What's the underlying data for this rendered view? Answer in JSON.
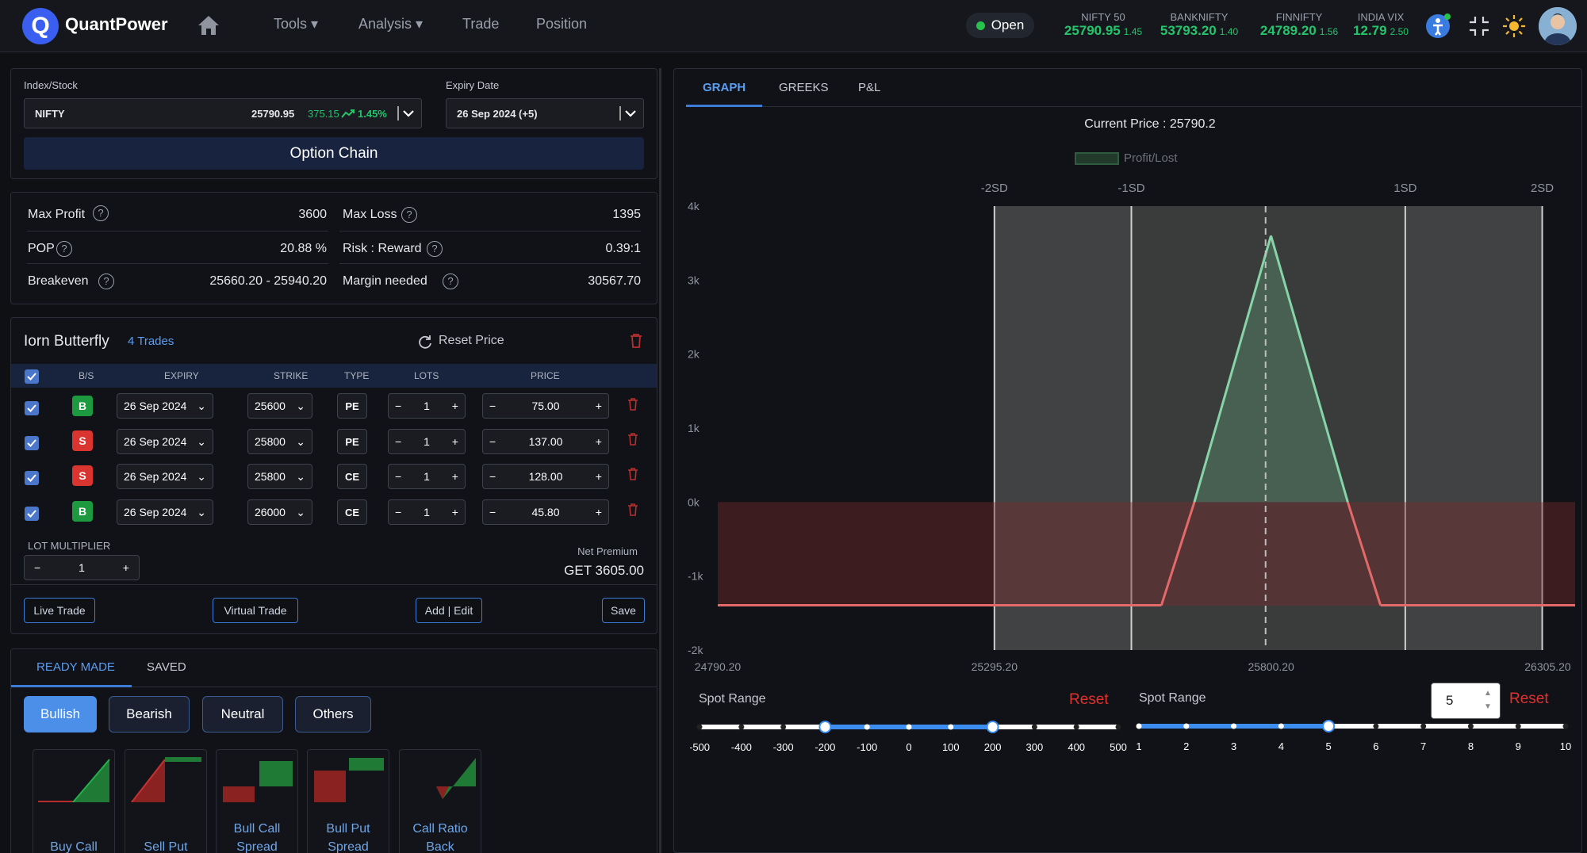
{
  "app": {
    "name": "QuantPower",
    "logo_letter": "Q"
  },
  "nav": {
    "home_icon": "home-icon",
    "items": [
      {
        "label": "Tools ▾"
      },
      {
        "label": "Analysis ▾"
      },
      {
        "label": "Trade"
      },
      {
        "label": "Position"
      }
    ]
  },
  "market_status": "Open",
  "indices": [
    {
      "name": "NIFTY 50",
      "value": "25790.95",
      "change": "1.45"
    },
    {
      "name": "BANKNIFTY",
      "value": "53793.20",
      "change": "1.40"
    },
    {
      "name": "FINNIFTY",
      "value": "24789.20",
      "change": "1.56"
    },
    {
      "name": "INDIA VIX",
      "value": "12.79",
      "change": "2.50"
    }
  ],
  "header_icons": [
    "accessibility-icon",
    "compress-icon",
    "sun-icon",
    "user-avatar"
  ],
  "selector": {
    "index_label": "Index/Stock",
    "index_symbol": "NIFTY",
    "index_price": "25790.95",
    "index_change": "375.15",
    "index_change_pct": "1.45%",
    "expiry_label": "Expiry Date",
    "expiry_value": "26 Sep 2024 (+5)",
    "option_chain_label": "Option Chain"
  },
  "stats": {
    "max_profit_label": "Max Profit",
    "max_profit": "3600",
    "max_loss_label": "Max Loss",
    "max_loss": "1395",
    "pop_label": "POP",
    "pop": "20.88 %",
    "rr_label": "Risk : Reward",
    "rr": "0.39:1",
    "breakeven_label": "Breakeven",
    "breakeven": "25660.20 - 25940.20",
    "margin_label": "Margin needed",
    "margin": "30567.70"
  },
  "strategy": {
    "name": "Iorn Butterfly",
    "trade_count": "4 Trades",
    "reset_price_label": "Reset Price",
    "columns": [
      "B/S",
      "EXPIRY",
      "STRIKE",
      "TYPE",
      "LOTS",
      "PRICE"
    ],
    "rows": [
      {
        "side": "B",
        "expiry": "26 Sep 2024",
        "strike": "25600",
        "type": "PE",
        "lots": "1",
        "price": "75.00"
      },
      {
        "side": "S",
        "expiry": "26 Sep 2024",
        "strike": "25800",
        "type": "PE",
        "lots": "1",
        "price": "137.00"
      },
      {
        "side": "S",
        "expiry": "26 Sep 2024",
        "strike": "25800",
        "type": "CE",
        "lots": "1",
        "price": "128.00"
      },
      {
        "side": "B",
        "expiry": "26 Sep 2024",
        "strike": "26000",
        "type": "CE",
        "lots": "1",
        "price": "45.80"
      }
    ],
    "lot_multiplier_label": "LOT MULTIPLIER",
    "lot_multiplier": "1",
    "net_premium_label": "Net Premium",
    "net_premium": "GET 3605.00",
    "buttons": {
      "live": "Live Trade",
      "virtual": "Virtual Trade",
      "add_edit": "Add | Edit",
      "save": "Save"
    }
  },
  "readymade": {
    "tabs": [
      "READY MADE",
      "SAVED"
    ],
    "categories": [
      "Bullish",
      "Bearish",
      "Neutral",
      "Others"
    ],
    "cards": [
      {
        "l1": "Buy Call",
        "l2": ""
      },
      {
        "l1": "Sell Put",
        "l2": ""
      },
      {
        "l1": "Bull Call",
        "l2": "Spread"
      },
      {
        "l1": "Bull Put",
        "l2": "Spread"
      },
      {
        "l1": "Call Ratio",
        "l2": "Back"
      }
    ]
  },
  "right_tabs": [
    "GRAPH",
    "GREEKS",
    "P&L"
  ],
  "chart_data": {
    "type": "area",
    "title": "Current Price : 25790.2",
    "legend": [
      "Profit/Lost"
    ],
    "legend_position": "top-center",
    "sd_labels": [
      "-2SD",
      "-1SD",
      "1SD",
      "2SD"
    ],
    "sd_x": [
      25295.2,
      25545.2,
      26045.2,
      26295.2
    ],
    "current_price": 25790.2,
    "x_ticks": [
      "24790.20",
      "25295.20",
      "25800.20",
      "26305.20"
    ],
    "xlim": [
      24790.2,
      26355.2
    ],
    "y_ticks": [
      "4k",
      "3k",
      "2k",
      "1k",
      "0k",
      "-1k",
      "-2k"
    ],
    "ylim": [
      -2000,
      4000
    ],
    "series": [
      {
        "name": "Profit/Lost",
        "x": [
          24790.2,
          25600,
          25660.2,
          25800,
          25940.2,
          26000,
          26355.2
        ],
        "y": [
          -1395,
          -1395,
          0,
          3600,
          0,
          -1395,
          -1395
        ]
      }
    ]
  },
  "spot_range": {
    "label": "Spot Range",
    "reset": "Reset",
    "ticks": [
      "-500",
      "-400",
      "-300",
      "-200",
      "-100",
      "0",
      "100",
      "200",
      "300",
      "400",
      "500"
    ],
    "range": [
      -200,
      200
    ]
  },
  "spot_range_2": {
    "label": "Spot Range",
    "reset": "Reset",
    "value": "5",
    "ticks": [
      "1",
      "2",
      "3",
      "4",
      "5",
      "6",
      "7",
      "8",
      "9",
      "10"
    ],
    "selected": 5
  }
}
